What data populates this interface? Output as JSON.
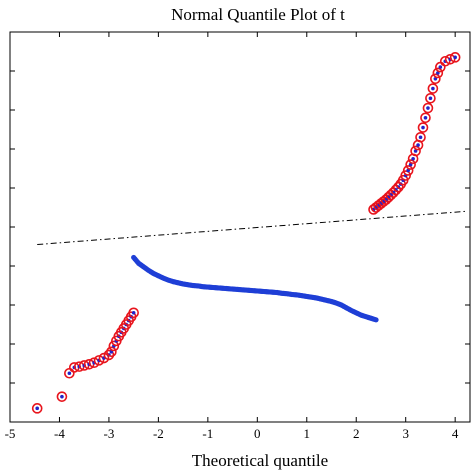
{
  "chart_data": {
    "type": "scatter",
    "title": "Normal Quantile Plot of t",
    "xlabel": "Theoretical quantile",
    "ylabel": "",
    "xlim": [
      -5,
      4.3
    ],
    "ylim": [
      -5,
      5
    ],
    "x_ticks": [
      -5,
      -4,
      -3,
      -2,
      -1,
      0,
      1,
      2,
      3,
      4
    ],
    "x_tick_labels": [
      "-5",
      "-4",
      "-3",
      "-2",
      "-1",
      "0",
      "1",
      "2",
      "3",
      "4"
    ],
    "y_ticks": [
      -5,
      -4,
      -3,
      -2,
      -1,
      0,
      1,
      2,
      3,
      4,
      5
    ],
    "grid": false,
    "legend": "none",
    "colors": {
      "central_points": "#1f3fd6",
      "tail_circle": "#e8141c",
      "tail_dot": "#2323c8",
      "reference_line": "#000000"
    },
    "reference_line": {
      "style": "dash-dot",
      "points": [
        [
          -4.45,
          -0.45
        ],
        [
          4.2,
          0.4
        ]
      ]
    },
    "series": [
      {
        "role": "central",
        "marker": "dot",
        "x": [
          -2.5,
          -2.4,
          -2.3,
          -2.2,
          -2.1,
          -2.0,
          -1.9,
          -1.8,
          -1.7,
          -1.6,
          -1.5,
          -1.4,
          -1.3,
          -1.2,
          -1.1,
          -1.0,
          -0.9,
          -0.8,
          -0.7,
          -0.6,
          -0.5,
          -0.4,
          -0.3,
          -0.2,
          -0.1,
          0.0,
          0.1,
          0.2,
          0.3,
          0.4,
          0.5,
          0.6,
          0.7,
          0.8,
          0.9,
          1.0,
          1.1,
          1.2,
          1.3,
          1.4,
          1.5,
          1.6,
          1.7,
          1.8,
          1.9,
          2.0,
          2.1,
          2.2,
          2.3,
          2.4
        ],
        "y": [
          -0.78,
          -0.93,
          -1.02,
          -1.11,
          -1.19,
          -1.25,
          -1.31,
          -1.36,
          -1.4,
          -1.43,
          -1.46,
          -1.48,
          -1.5,
          -1.51,
          -1.53,
          -1.54,
          -1.55,
          -1.56,
          -1.57,
          -1.58,
          -1.59,
          -1.6,
          -1.61,
          -1.62,
          -1.63,
          -1.64,
          -1.65,
          -1.66,
          -1.67,
          -1.68,
          -1.7,
          -1.71,
          -1.73,
          -1.74,
          -1.76,
          -1.78,
          -1.8,
          -1.82,
          -1.85,
          -1.88,
          -1.91,
          -1.95,
          -2.0,
          -2.07,
          -2.14,
          -2.2,
          -2.26,
          -2.3,
          -2.34,
          -2.38
        ]
      },
      {
        "role": "lower-tail",
        "marker": "circle-dot",
        "x": [
          -4.45,
          -3.95,
          -3.8,
          -3.7,
          -3.6,
          -3.5,
          -3.4,
          -3.3,
          -3.2,
          -3.1,
          -3.0,
          -2.95,
          -2.9,
          -2.85,
          -2.8,
          -2.75,
          -2.7,
          -2.65,
          -2.6,
          -2.55,
          -2.5
        ],
        "y": [
          -4.65,
          -4.35,
          -3.75,
          -3.6,
          -3.58,
          -3.55,
          -3.52,
          -3.48,
          -3.42,
          -3.36,
          -3.28,
          -3.2,
          -3.05,
          -2.92,
          -2.8,
          -2.7,
          -2.6,
          -2.5,
          -2.4,
          -2.3,
          -2.2
        ]
      },
      {
        "role": "upper-tail",
        "marker": "circle-dot",
        "x": [
          2.35,
          2.4,
          2.45,
          2.5,
          2.55,
          2.6,
          2.65,
          2.7,
          2.75,
          2.8,
          2.85,
          2.9,
          2.95,
          3.0,
          3.05,
          3.1,
          3.15,
          3.2,
          3.25,
          3.3,
          3.35,
          3.4,
          3.45,
          3.5,
          3.55,
          3.6,
          3.65,
          3.7,
          3.8,
          3.9,
          4.0
        ],
        "y": [
          0.45,
          0.5,
          0.55,
          0.6,
          0.65,
          0.7,
          0.76,
          0.82,
          0.88,
          0.95,
          1.02,
          1.1,
          1.2,
          1.32,
          1.45,
          1.6,
          1.75,
          1.95,
          2.1,
          2.3,
          2.55,
          2.8,
          3.05,
          3.3,
          3.55,
          3.8,
          3.95,
          4.1,
          4.25,
          4.3,
          4.35
        ]
      }
    ]
  }
}
